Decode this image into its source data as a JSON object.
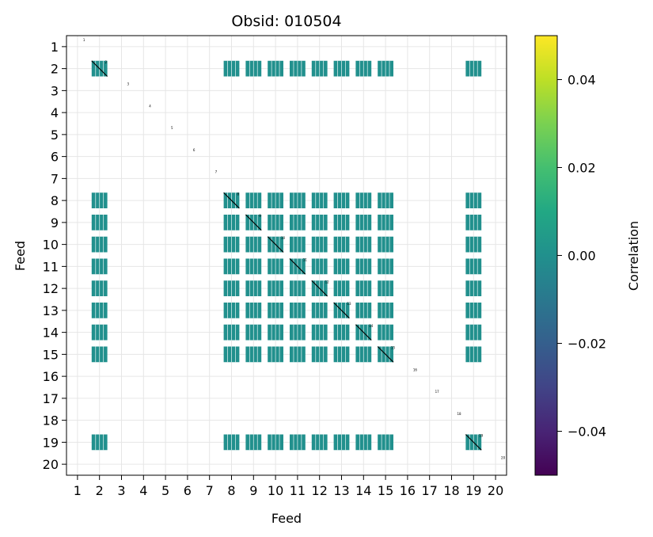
{
  "chart_data": {
    "type": "heatmap",
    "title": "Obsid: 010504",
    "xlabel": "Feed",
    "ylabel": "Feed",
    "x_ticks": [
      "1",
      "2",
      "3",
      "4",
      "5",
      "6",
      "7",
      "8",
      "9",
      "10",
      "11",
      "12",
      "13",
      "14",
      "15",
      "16",
      "17",
      "18",
      "19",
      "20"
    ],
    "y_ticks": [
      "1",
      "2",
      "3",
      "4",
      "5",
      "6",
      "7",
      "8",
      "9",
      "10",
      "11",
      "12",
      "13",
      "14",
      "15",
      "16",
      "17",
      "18",
      "19",
      "20"
    ],
    "grid": true,
    "colorbar": {
      "label": "Correlation",
      "colormap": "viridis",
      "vmin": -0.05,
      "vmax": 0.05,
      "ticks": [
        0.04,
        0.02,
        0.0,
        -0.02,
        -0.04
      ],
      "tick_labels": [
        "0.04",
        "0.02",
        "0.00",
        "−0.02",
        "−0.04"
      ]
    },
    "active_feeds": [
      2,
      8,
      9,
      10,
      11,
      12,
      13,
      14,
      15,
      19
    ],
    "inactive_feeds": [
      1,
      3,
      4,
      5,
      6,
      7,
      16,
      17,
      18,
      20
    ],
    "block_value": 0.0,
    "diagonal_labels": [
      "1",
      "2",
      "3",
      "4",
      "5",
      "6",
      "7",
      "8",
      "9",
      "10",
      "11",
      "12",
      "13",
      "14",
      "15",
      "16",
      "17",
      "18",
      "19",
      "20"
    ],
    "colors": {
      "block_teal": "#21908d",
      "grid": "#e6e6e6",
      "axis": "#000000"
    }
  }
}
